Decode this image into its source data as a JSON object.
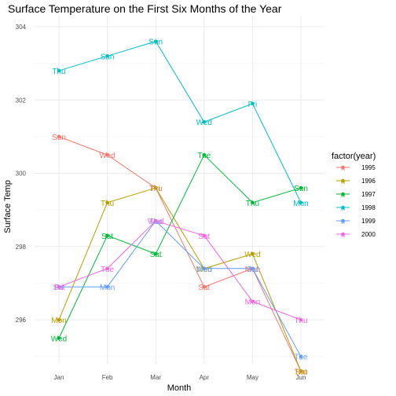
{
  "chart_data": {
    "type": "line",
    "title": "Surface Temperature on the First Six Months of the Year",
    "xlabel": "Month",
    "ylabel": "Surface Temp",
    "categories": [
      "Jan",
      "Feb",
      "Mar",
      "Apr",
      "May",
      "Jun"
    ],
    "yticks": [
      296,
      298,
      300,
      302,
      304
    ],
    "ylim": [
      294.8,
      304.3
    ],
    "grid": true,
    "legend": {
      "title": "factor(year)",
      "position": "right"
    },
    "series": [
      {
        "name": "1995",
        "color": "#F8766D",
        "values": [
          301.0,
          300.5,
          299.6,
          296.9,
          297.4,
          294.6
        ],
        "labels": [
          "Sun",
          "Wed",
          "Thu",
          "Sat",
          "Mon",
          "Thu"
        ]
      },
      {
        "name": "1996",
        "color": "#B79F00",
        "values": [
          296.0,
          299.2,
          299.6,
          297.4,
          297.8,
          294.6
        ],
        "labels": [
          "Mon",
          "Thu",
          "Fri",
          "Mon",
          "Wed",
          "Sat"
        ]
      },
      {
        "name": "1997",
        "color": "#00BA38",
        "values": [
          295.5,
          298.3,
          297.8,
          300.5,
          299.2,
          299.6
        ],
        "labels": [
          "Wed",
          "Sat",
          "Sat",
          "Tue",
          "Thu",
          "Sun"
        ]
      },
      {
        "name": "1998",
        "color": "#00BFC4",
        "values": [
          302.8,
          303.2,
          303.6,
          301.4,
          301.9,
          299.2
        ],
        "labels": [
          "Thu",
          "Sun",
          "Sun",
          "Wed",
          "Fri",
          "Mon"
        ]
      },
      {
        "name": "1999",
        "color": "#619CFF",
        "values": [
          296.9,
          296.9,
          298.7,
          297.4,
          297.4,
          295.0
        ],
        "labels": [
          "Fri",
          "Mon",
          "Tue",
          "Wed",
          "Sat",
          "Tue"
        ]
      },
      {
        "name": "2000",
        "color": "#F564E3",
        "values": [
          296.9,
          297.4,
          298.7,
          298.3,
          296.5,
          296.0
        ],
        "labels": [
          "Sat",
          "Tue",
          "Wed",
          "Sat",
          "Mon",
          "Thu"
        ]
      }
    ]
  }
}
